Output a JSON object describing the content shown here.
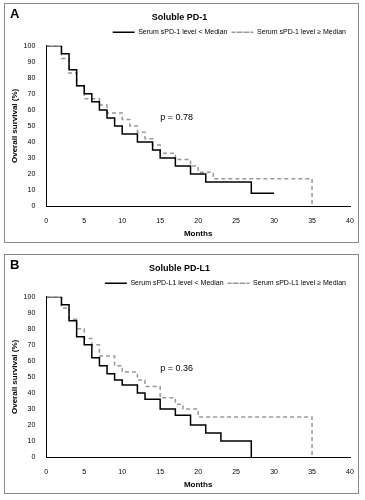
{
  "chart_data": [
    {
      "type": "line",
      "panel": "A",
      "title": "Soluble PD-1",
      "x_label": "Months",
      "y_label": "Overall survival (%)",
      "xlim": [
        0,
        40
      ],
      "xticks": [
        0,
        5,
        10,
        15,
        20,
        25,
        30,
        35,
        40
      ],
      "ylim": [
        0,
        100
      ],
      "yticks": [
        0,
        10,
        20,
        30,
        40,
        50,
        60,
        70,
        80,
        90,
        100
      ],
      "grid": false,
      "legend": "top-right",
      "annotations": [
        {
          "text": "p = 0.78",
          "x": 15,
          "y": 55
        }
      ],
      "series": [
        {
          "name": "Serum sPD-1 level < Median",
          "color": "#000000",
          "line_style": "solid",
          "x": [
            0,
            2,
            3,
            4,
            5,
            6,
            7,
            8,
            9,
            10,
            12,
            14,
            15,
            17,
            19,
            21,
            27,
            30
          ],
          "values": [
            100,
            95,
            85,
            75,
            70,
            65,
            60,
            55,
            50,
            45,
            40,
            35,
            30,
            25,
            20,
            15,
            8,
            8
          ]
        },
        {
          "name": "Serum sPD-1 level ≥ Median",
          "color": "#999999",
          "line_style": "dashed",
          "x": [
            0,
            2,
            3,
            4,
            5,
            7,
            8,
            10,
            11,
            12,
            13,
            14,
            15,
            17,
            19,
            20,
            22,
            35
          ],
          "values": [
            100,
            92,
            83,
            75,
            67,
            63,
            58,
            54,
            50,
            46,
            42,
            38,
            33,
            29,
            25,
            21,
            17,
            0
          ]
        }
      ]
    },
    {
      "type": "line",
      "panel": "B",
      "title": "Soluble PD-L1",
      "x_label": "Months",
      "y_label": "Overall survival (%)",
      "xlim": [
        0,
        40
      ],
      "xticks": [
        0,
        5,
        10,
        15,
        20,
        25,
        30,
        35,
        40
      ],
      "ylim": [
        0,
        100
      ],
      "yticks": [
        0,
        10,
        20,
        30,
        40,
        50,
        60,
        70,
        80,
        90,
        100
      ],
      "grid": false,
      "legend": "top-right",
      "annotations": [
        {
          "text": "p = 0.36",
          "x": 15,
          "y": 55
        }
      ],
      "series": [
        {
          "name": "Serum sPD-L1 level < Median",
          "color": "#000000",
          "line_style": "solid",
          "x": [
            0,
            2,
            3,
            4,
            5,
            6,
            7,
            8,
            9,
            10,
            12,
            13,
            15,
            17,
            19,
            21,
            23,
            27
          ],
          "values": [
            100,
            95,
            85,
            75,
            70,
            62,
            57,
            52,
            48,
            45,
            40,
            36,
            30,
            26,
            20,
            15,
            10,
            0
          ]
        },
        {
          "name": "Serum sPD-L1 level ≥ Median",
          "color": "#999999",
          "line_style": "dashed",
          "x": [
            0,
            2,
            3,
            4,
            5,
            6,
            7,
            9,
            10,
            12,
            13,
            15,
            17,
            18,
            20,
            35
          ],
          "values": [
            100,
            93,
            86,
            80,
            74,
            70,
            63,
            57,
            53,
            48,
            44,
            37,
            33,
            30,
            25,
            0
          ]
        }
      ]
    }
  ]
}
